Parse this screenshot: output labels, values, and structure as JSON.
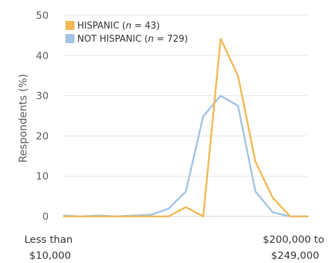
{
  "chart_data": {
    "type": "line",
    "ylabel": "Respondents (%)",
    "ylim": [
      0,
      50
    ],
    "yticks": [
      "0",
      "10",
      "20",
      "30",
      "40",
      "50"
    ],
    "grid": "horizontal",
    "legend_position": "top-left",
    "x_start_label": [
      "Less than",
      "$10,000"
    ],
    "x_end_label": [
      "$200,000 to",
      "$249,000"
    ],
    "series": [
      {
        "name": "HISPANIC",
        "n_label": "43",
        "color": "#f0b956",
        "values": [
          0,
          0,
          0,
          0,
          0,
          0,
          0,
          2.3,
          0,
          44.2,
          34.9,
          13.6,
          4.6,
          0,
          0
        ]
      },
      {
        "name": "NOT HISPANIC",
        "n_label": "729",
        "color": "#a3c4e3",
        "values": [
          0.2,
          0,
          0.2,
          0,
          0.2,
          0.4,
          1.9,
          6.2,
          24.9,
          30.0,
          27.5,
          6.2,
          1.0,
          0,
          0
        ]
      }
    ]
  }
}
